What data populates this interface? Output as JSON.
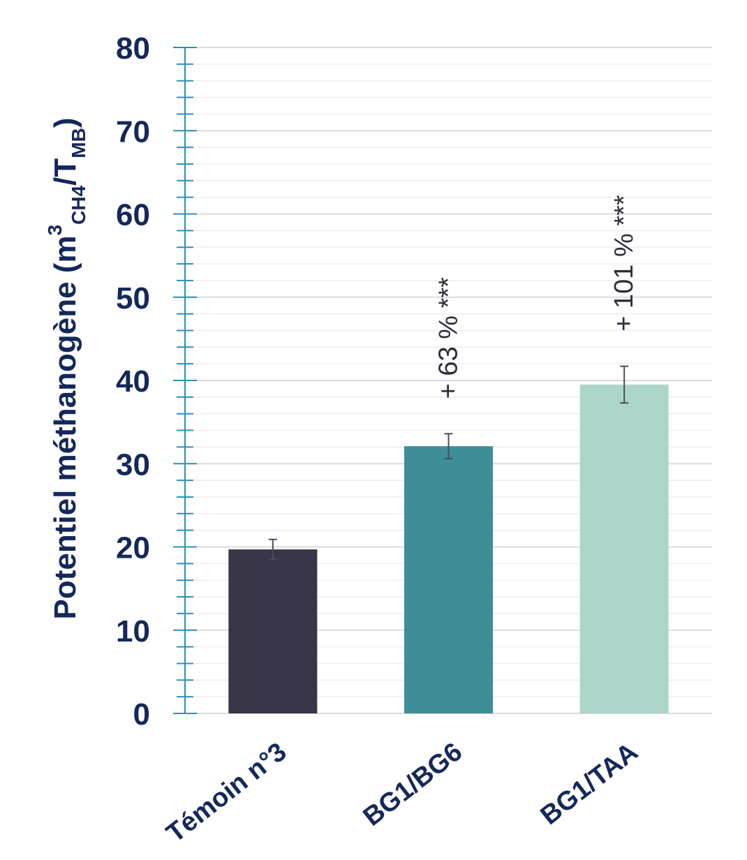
{
  "chart_data": {
    "type": "bar",
    "categories": [
      "Témoin n°3",
      "BG1/BG6",
      "BG1/TAA"
    ],
    "values": [
      19.7,
      32.1,
      39.5
    ],
    "error_low": [
      18.5,
      30.6,
      37.3
    ],
    "error_high": [
      20.9,
      33.6,
      41.7
    ],
    "annotations": [
      "",
      "+ 63 % ***",
      "+ 101 % ***"
    ],
    "colors": [
      "#383546",
      "#3d8e97",
      "#acd5c9"
    ],
    "ylabel": {
      "main": "Potentiel méthanogène (m",
      "sup": "3",
      "sub1": "CH4",
      "mid": "/T",
      "sub2": "MB",
      "end": ")"
    },
    "ylim": [
      0,
      80
    ],
    "yticks": [
      "0",
      "10",
      "20",
      "30",
      "40",
      "50",
      "60",
      "70",
      "80"
    ],
    "ytick_values": [
      0,
      10,
      20,
      30,
      40,
      50,
      60,
      70,
      80
    ],
    "grid": true,
    "axis_color": "#2e8fb8",
    "text_color": "#14285a"
  }
}
